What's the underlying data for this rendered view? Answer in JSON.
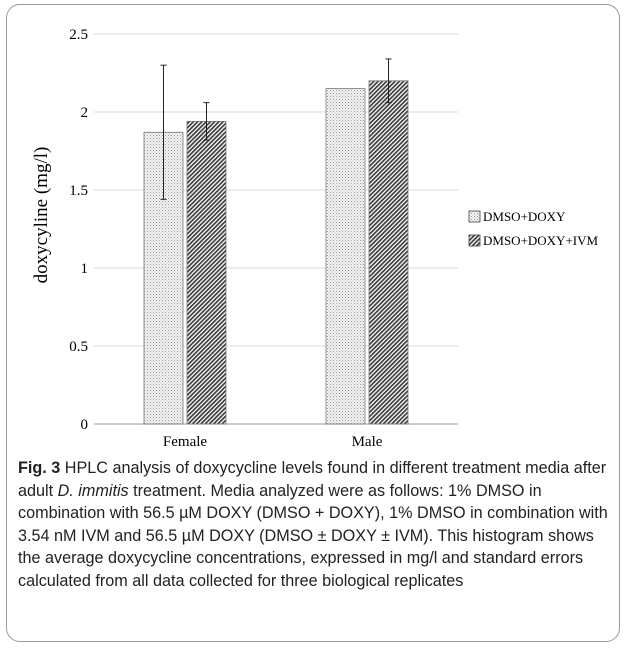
{
  "chart_data": {
    "type": "bar",
    "categories": [
      "Female",
      "Male"
    ],
    "series": [
      {
        "name": "DMSO+DOXY",
        "values": [
          1.87,
          2.15
        ],
        "errors": [
          0.43,
          0.0
        ],
        "pattern": "dots"
      },
      {
        "name": "DMSO+DOXY+IVM",
        "values": [
          1.94,
          2.2
        ],
        "errors": [
          0.12,
          0.14
        ],
        "pattern": "diagonal"
      }
    ],
    "ylabel": "doxycyline (mg/l)",
    "xlabel": "",
    "ylim": [
      0,
      2.5
    ],
    "yticks": [
      "0",
      "0.5",
      "1",
      "1.5",
      "2",
      "2.5"
    ],
    "grid": true,
    "legend_position": "right"
  },
  "caption": {
    "fig_label": "Fig. 3",
    "text_part1": "HPLC analysis of doxycycline levels found in different treatment media after adult ",
    "species": "D. immitis",
    "text_part2": " treatment. Media analyzed were as follows: 1% DMSO in combination with 56.5 µM DOXY (DMSO + DOXY), 1% DMSO in combination with 3.54 nM IVM and 56.5 µM DOXY (DMSO ± DOXY ± IVM). This histogram shows the average doxycycline concentrations, expressed in mg/l and standard errors calculated from all data collected for three biological replicates"
  }
}
